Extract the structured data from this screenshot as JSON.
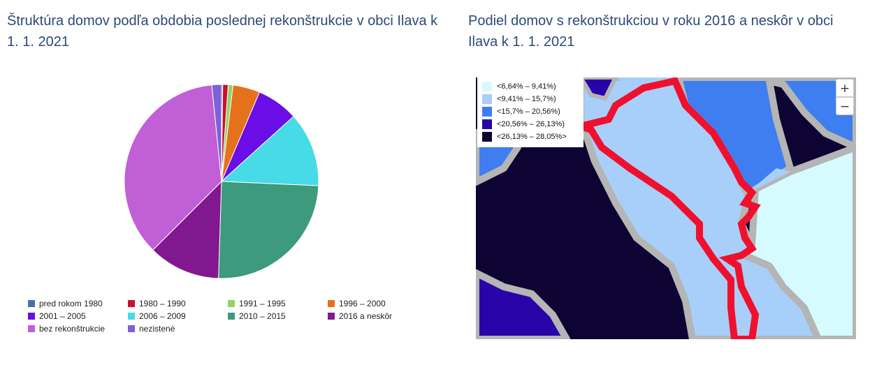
{
  "left_title": "Štruktúra domov podľa obdobia poslednej rekonštrukcie v obci Ilava k 1. 1. 2021",
  "right_title": "Podiel domov s rekonštrukciou v roku 2016 a neskôr v obci Ilava k 1. 1. 2021",
  "chart_data": [
    {
      "type": "pie",
      "title": "Štruktúra domov podľa obdobia poslednej rekonštrukcie v obci Ilava k 1. 1. 2021",
      "legend_position": "bottom",
      "slices": [
        {
          "label": "pred rokom 1980",
          "value": 0.2,
          "color": "#4572a7"
        },
        {
          "label": "1980 – 1990",
          "value": 0.9,
          "color": "#c8102e"
        },
        {
          "label": "1991 – 1995",
          "value": 0.8,
          "color": "#8fd464"
        },
        {
          "label": "1996 – 2000",
          "value": 4.5,
          "color": "#e6711c"
        },
        {
          "label": "2001 – 2005",
          "value": 6.9,
          "color": "#6a0de6"
        },
        {
          "label": "2006 – 2009",
          "value": 12.4,
          "color": "#46dbe6"
        },
        {
          "label": "2010 – 2015",
          "value": 24.8,
          "color": "#3d9a7c"
        },
        {
          "label": "2016 a neskôr",
          "value": 12.0,
          "color": "#82188f"
        },
        {
          "label": "bez rekonštrukcie",
          "value": 35.9,
          "color": "#c05fd6"
        },
        {
          "label": "nezistené",
          "value": 1.6,
          "color": "#8060d8"
        }
      ]
    },
    {
      "type": "choropleth-map",
      "title": "Podiel domov s rekonštrukciou v roku 2016 a neskôr v obci Ilava k 1. 1. 2021",
      "legend_position": "top-left",
      "legend": [
        {
          "label": "<6,64% – 9,41%)",
          "color": "#d6fbff"
        },
        {
          "label": "<9,41% – 15,7%)",
          "color": "#a7cff9"
        },
        {
          "label": "<15,7% – 20,56%)",
          "color": "#3f7ef0"
        },
        {
          "label": "<20,56% – 26,13%)",
          "color": "#2804a8"
        },
        {
          "label": "<26,13% – 28,05%>",
          "color": "#0d0433"
        }
      ],
      "highlight_color": "#f0102e"
    }
  ],
  "map_controls": {
    "zoom_in": "+",
    "zoom_out": "−"
  }
}
